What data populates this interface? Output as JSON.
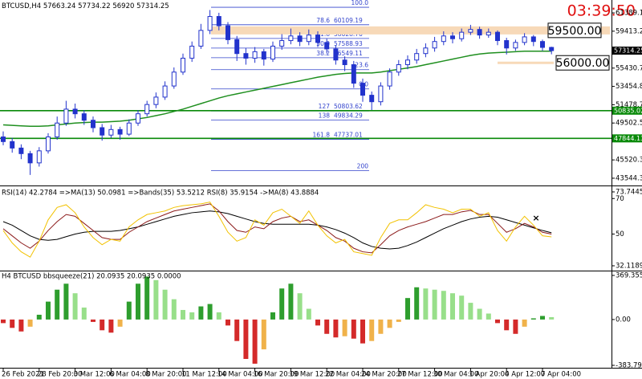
{
  "chart_data": [
    {
      "type": "candlestick",
      "symbol": "BTCUSD,H4",
      "clock": "03:39:50",
      "color": "#2233cc",
      "categories": [
        "26 Feb 2021",
        null,
        null,
        null,
        "28 Feb 20:00",
        null,
        null,
        null,
        "3 Mar 12:00",
        null,
        null,
        null,
        "6 Mar 04:00",
        null,
        null,
        null,
        "8 Mar 20:00",
        null,
        null,
        null,
        "11 Mar 12:00",
        null,
        null,
        null,
        "14 Mar 04:00",
        null,
        null,
        null,
        "16 Mar 20:00",
        null,
        null,
        null,
        "19 Mar 12:00",
        null,
        null,
        null,
        "22 Mar 04:00",
        null,
        null,
        null,
        "24 Mar 20:00",
        null,
        null,
        null,
        "27 Mar 12:00",
        null,
        null,
        null,
        "30 Mar 04:00",
        null,
        null,
        null,
        "1 Apr 20:00",
        null,
        null,
        null,
        "4 Apr 12:00",
        null,
        null,
        null,
        "7 Apr 04:00",
        null
      ],
      "open": [
        48000,
        47500,
        46800,
        46200,
        45200,
        46500,
        48000,
        49500,
        51000,
        50500,
        49800,
        49000,
        48200,
        48800,
        48300,
        49500,
        50500,
        51500,
        52300,
        53500,
        55000,
        56500,
        57800,
        59500,
        61000,
        60000,
        58500,
        57000,
        56500,
        57200,
        56400,
        57800,
        58400,
        58900,
        58300,
        59000,
        58200,
        57500,
        56300,
        55800,
        53800,
        52500,
        51800,
        53500,
        55000,
        55800,
        56300,
        57000,
        57600,
        58300,
        58900,
        58600,
        59300,
        59600,
        59000,
        59300,
        58400,
        57600,
        58200,
        58800,
        58300,
        57663.24
      ],
      "high": [
        48600,
        47900,
        47200,
        46500,
        46900,
        48400,
        50200,
        51900,
        51600,
        50900,
        50200,
        49400,
        49300,
        49100,
        49900,
        50900,
        51900,
        52800,
        54000,
        55500,
        57000,
        58300,
        60200,
        61700,
        61400,
        60400,
        58900,
        57600,
        57700,
        57500,
        58300,
        59100,
        59700,
        59300,
        59600,
        59400,
        58600,
        57900,
        56700,
        56200,
        54300,
        52900,
        53900,
        55400,
        56300,
        56800,
        57500,
        58100,
        58800,
        59400,
        59300,
        59700,
        60100,
        59900,
        59700,
        59500,
        58700,
        58500,
        59200,
        59000,
        58500,
        57734.22
      ],
      "low": [
        47100,
        46300,
        45600,
        43900,
        44800,
        46200,
        47700,
        49200,
        50000,
        49300,
        48500,
        47600,
        47900,
        47700,
        48100,
        49200,
        50200,
        51100,
        52000,
        53200,
        54700,
        56100,
        57500,
        59100,
        59500,
        58000,
        56200,
        55800,
        56000,
        55700,
        56100,
        57400,
        58000,
        57800,
        57900,
        57700,
        57000,
        55800,
        55100,
        53300,
        51800,
        50900,
        51400,
        53100,
        54600,
        55300,
        55900,
        56600,
        57200,
        57900,
        58100,
        58300,
        59000,
        58600,
        58700,
        57900,
        56900,
        57300,
        57900,
        57800,
        57300,
        56920.0
      ],
      "close": [
        47500,
        46800,
        46200,
        45200,
        46500,
        48000,
        49500,
        51000,
        50500,
        49800,
        49000,
        48200,
        48800,
        48300,
        49500,
        50500,
        51500,
        52300,
        53500,
        55000,
        56500,
        57800,
        59500,
        61000,
        60000,
        58500,
        57000,
        56500,
        57200,
        56400,
        57800,
        58400,
        58900,
        58300,
        59000,
        58200,
        57500,
        56300,
        55800,
        53800,
        52500,
        51800,
        53500,
        55000,
        55800,
        56300,
        57000,
        57600,
        58300,
        58900,
        58600,
        59300,
        59600,
        59000,
        59300,
        58400,
        57600,
        58200,
        58800,
        58300,
        57663.24,
        57314.25
      ],
      "series": [
        {
          "color": "#1f8f1f",
          "values": [
            49300,
            49250,
            49200,
            49150,
            49150,
            49200,
            49300,
            49400,
            49500,
            49550,
            49600,
            49600,
            49650,
            49700,
            49800,
            49950,
            50100,
            50300,
            50500,
            50750,
            51000,
            51300,
            51600,
            51900,
            52200,
            52450,
            52650,
            52850,
            53050,
            53250,
            53450,
            53650,
            53850,
            54050,
            54250,
            54450,
            54600,
            54750,
            54850,
            54900,
            54900,
            54900,
            55000,
            55150,
            55300,
            55450,
            55600,
            55800,
            56000,
            56200,
            56400,
            56600,
            56800,
            56950,
            57050,
            57100,
            57150,
            57200,
            57250,
            57250,
            57250,
            57250
          ]
        }
      ],
      "ylim": [
        42760,
        62780
      ],
      "yticks": [
        {
          "value": 61389.1,
          "label": "61389.10"
        },
        {
          "value": 59413.2,
          "label": "59413.20"
        },
        {
          "value": 55430.7,
          "label": "55430.70"
        },
        {
          "value": 53454.8,
          "label": "53454.80"
        },
        {
          "value": 51478.7,
          "label": "51478.70"
        },
        {
          "value": 49502.5,
          "label": "49502.50"
        },
        {
          "value": 45520.3,
          "label": "45520.30"
        },
        {
          "value": 43544.3,
          "label": "43544.30"
        }
      ],
      "hlines": [
        {
          "value": 50835.02,
          "color": "#0a8a0a"
        },
        {
          "value": 47844.13,
          "color": "#0a8a0a"
        }
      ],
      "levels": [
        {
          "value": 59500,
          "label": "59500.00",
          "color": "#f7d9b8"
        },
        {
          "value": 56000,
          "label": "56000.00",
          "color": "#f7d9b8"
        }
      ],
      "fib_color": "#3344cc",
      "fib_levels": [
        {
          "ratio": "100.0",
          "price": 61994
        },
        {
          "ratio": "78.6",
          "price": 60109.19
        },
        {
          "ratio": "61.8",
          "price": 58628.76
        },
        {
          "ratio": "50.0",
          "price": 57588.93
        },
        {
          "ratio": "38.2",
          "price": 56549.11
        },
        {
          "ratio": "23.6",
          "price": 55263
        },
        {
          "ratio": "0.0",
          "price": 53184
        },
        {
          "ratio": "127",
          "price": 50803.62
        },
        {
          "ratio": "138",
          "price": 49834.29
        },
        {
          "ratio": "161.8",
          "price": 47737.01
        },
        {
          "ratio": "200",
          "price": 44374
        }
      ]
    },
    {
      "type": "line",
      "header": "RSI(14) 42.2784 =>MA(13) 50.0981 =>Bands(35) 53.5212 RSI(8) 35.9154 ->MA(8) 43.8884",
      "ylim": [
        29.4,
        76.9
      ],
      "yticks": [
        73.7445,
        70,
        50,
        32.1189
      ],
      "series": [
        {
          "color": "#000000",
          "values": [
            57,
            55,
            52,
            49,
            47,
            46.5,
            47,
            48.5,
            50,
            51,
            51.5,
            51.5,
            51.5,
            52,
            53,
            54,
            55.5,
            57,
            58.5,
            60,
            61,
            62,
            62.5,
            63,
            62.5,
            61.5,
            60,
            58.5,
            57,
            56,
            55.5,
            55.5,
            55.5,
            55.5,
            55.5,
            55,
            54,
            52.5,
            50.5,
            48,
            45,
            43,
            42,
            41.6,
            42,
            43.5,
            45.5,
            48,
            50.5,
            53,
            55,
            57,
            58.5,
            59.5,
            60,
            59.5,
            58,
            56.5,
            55,
            53.5,
            52,
            50.7
          ]
        },
        {
          "color": "#8b1a1a",
          "values": [
            53,
            49,
            45,
            42,
            46,
            52,
            57,
            61,
            60,
            56,
            52,
            48,
            47,
            47,
            51,
            54,
            57,
            59,
            61,
            63,
            64,
            65,
            66,
            67,
            63,
            57,
            52,
            51,
            54,
            53,
            57,
            59,
            60,
            57,
            58,
            55,
            52,
            48,
            46,
            42,
            40,
            39.4,
            44,
            49,
            52,
            54,
            55.5,
            57,
            59,
            61,
            61,
            62.5,
            63.3,
            61,
            61,
            56,
            51,
            53,
            56,
            54,
            51,
            50
          ]
        },
        {
          "color": "#f2c200",
          "values": [
            52,
            45,
            40,
            37,
            46,
            58,
            65,
            66.5,
            62,
            54,
            48,
            44,
            47,
            46,
            54,
            58,
            61,
            62,
            63,
            65,
            66,
            66.5,
            67,
            68,
            60,
            51,
            46,
            48,
            58,
            55,
            62,
            64,
            60,
            56,
            63,
            55,
            49,
            45,
            47,
            40,
            39,
            38,
            48,
            56,
            58,
            58,
            62,
            66.5,
            65,
            64,
            62,
            64,
            64,
            60,
            62,
            52,
            46,
            54,
            60,
            55,
            49,
            48.4
          ]
        }
      ]
    },
    {
      "type": "histogram",
      "header": "H4 BTCUSD bbsqueeze(21) 20.0935 20.0935 0.0000",
      "ylim": [
        -404,
        403
      ],
      "yticks": [
        369.3555,
        {
          "value": 0,
          "label": "0.00"
        },
        -383.7903
      ],
      "colors": {
        "rising_positive": "#2e9e2e",
        "falling_positive": "#98df8a",
        "falling_negative": "#d42a2a",
        "rising_negative": "#f0b24a"
      },
      "values": [
        -30,
        -70,
        -100,
        -60,
        40,
        150,
        250,
        300,
        220,
        100,
        -20,
        -90,
        -110,
        -60,
        150,
        300,
        360,
        330,
        250,
        170,
        80,
        60,
        110,
        130,
        60,
        -50,
        -180,
        -330,
        -370,
        -250,
        60,
        260,
        300,
        220,
        90,
        -50,
        -120,
        -150,
        -140,
        -160,
        -200,
        -180,
        -120,
        -70,
        -20,
        180,
        270,
        260,
        250,
        240,
        220,
        200,
        140,
        90,
        50,
        -30,
        -90,
        -120,
        -60,
        10,
        30,
        20.0935
      ]
    }
  ]
}
